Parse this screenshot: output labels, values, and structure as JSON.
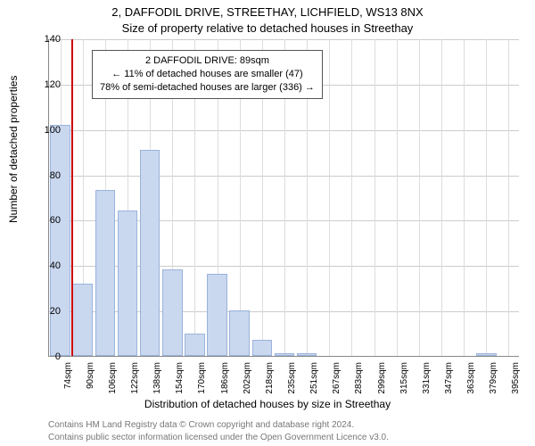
{
  "title": "2, DAFFODIL DRIVE, STREETHAY, LICHFIELD, WS13 8NX",
  "subtitle": "Size of property relative to detached houses in Streethay",
  "ylabel": "Number of detached properties",
  "xlabel": "Distribution of detached houses by size in Streethay",
  "footer1": "Contains HM Land Registry data © Crown copyright and database right 2024.",
  "footer2": "Contains public sector information licensed under the Open Government Licence v3.0.",
  "chart": {
    "type": "bar",
    "background_color": "#ffffff",
    "grid_color": "#cccccc",
    "bar_fill": "#c9d7ef",
    "bar_stroke": "#9ab3db",
    "marker_color": "#cc0000",
    "title_fontsize": 13,
    "label_fontsize": 12,
    "tick_fontsize": 11,
    "ylim": [
      0,
      140
    ],
    "ytick_step": 20,
    "categories": [
      "74sqm",
      "90sqm",
      "106sqm",
      "122sqm",
      "138sqm",
      "154sqm",
      "170sqm",
      "186sqm",
      "202sqm",
      "218sqm",
      "235sqm",
      "251sqm",
      "267sqm",
      "283sqm",
      "299sqm",
      "315sqm",
      "331sqm",
      "347sqm",
      "363sqm",
      "379sqm",
      "395sqm"
    ],
    "values": [
      102,
      32,
      73,
      64,
      91,
      38,
      10,
      36,
      20,
      7,
      1,
      1,
      0,
      0,
      0,
      0,
      0,
      0,
      0,
      1,
      0
    ],
    "marker_between_index": [
      0,
      1
    ],
    "annotation": {
      "line1": "2 DAFFODIL DRIVE: 89sqm",
      "line2": "← 11% of detached houses are smaller (47)",
      "line3": "78% of semi-detached houses are larger (336) →",
      "border_color": "#555555",
      "background": "#ffffff"
    }
  }
}
